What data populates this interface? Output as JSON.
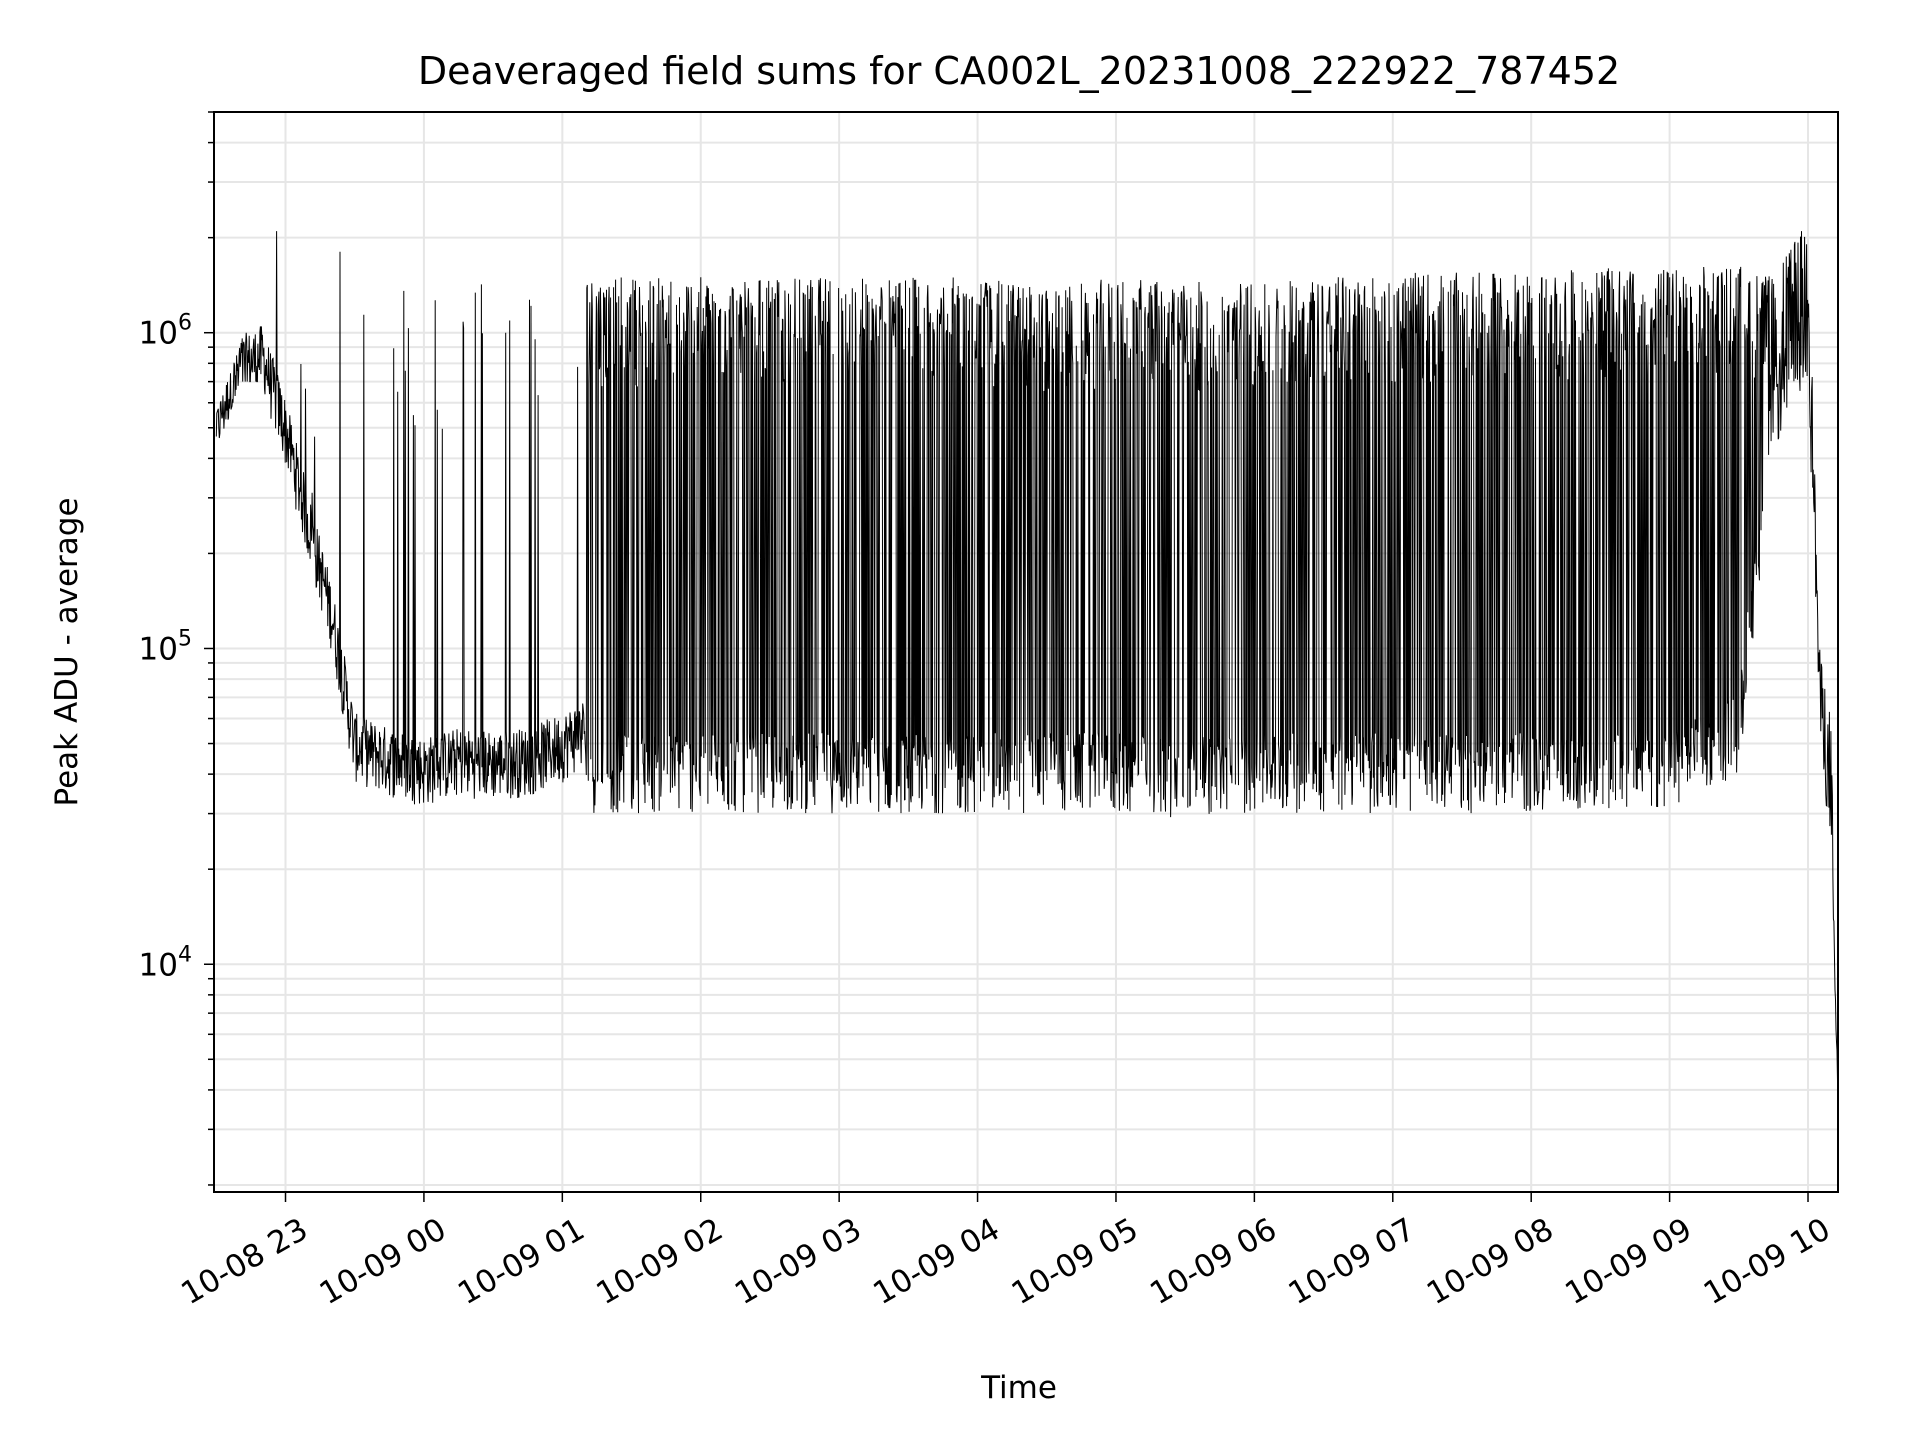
{
  "chart_data": {
    "type": "line",
    "title": "Deaveraged field sums for CA002L_20231008_222922_787452",
    "xlabel": "Time",
    "ylabel": "Peak ADU - average",
    "yscale": "log",
    "ylim": [
      1900,
      5000000
    ],
    "xlim": [
      "2023-10-08 22:29",
      "2023-10-09 10:13"
    ],
    "grid": true,
    "line_color": "#000000",
    "x_ticks": [
      "10-08 23",
      "10-09 00",
      "10-09 01",
      "10-09 02",
      "10-09 03",
      "10-09 04",
      "10-09 05",
      "10-09 06",
      "10-09 07",
      "10-09 08",
      "10-09 09",
      "10-09 10"
    ],
    "y_ticks": [
      {
        "value": 10000,
        "base": "10",
        "exp": "4"
      },
      {
        "value": 100000,
        "base": "10",
        "exp": "5"
      },
      {
        "value": 1000000,
        "base": "10",
        "exp": "6"
      }
    ],
    "series": [
      {
        "x": [
          "2023-10-08 22:30",
          "2023-10-08 22:40",
          "2023-10-08 22:50",
          "2023-10-08 23:00",
          "2023-10-08 23:10",
          "2023-10-08 23:20",
          "2023-10-08 23:30",
          "2023-10-08 23:45",
          "2023-10-09 00:00",
          "2023-10-09 00:15",
          "2023-10-09 00:30",
          "2023-10-09 00:45",
          "2023-10-09 01:00",
          "2023-10-09 01:15",
          "2023-10-09 01:30",
          "2023-10-09 01:45",
          "2023-10-09 02:00",
          "2023-10-09 02:30",
          "2023-10-09 03:00",
          "2023-10-09 03:30",
          "2023-10-09 04:00",
          "2023-10-09 04:30",
          "2023-10-09 05:00",
          "2023-10-09 05:30",
          "2023-10-09 06:00",
          "2023-10-09 06:30",
          "2023-10-09 07:00",
          "2023-10-09 07:30",
          "2023-10-09 08:00",
          "2023-10-09 08:30",
          "2023-10-09 09:00",
          "2023-10-09 09:30",
          "2023-10-09 09:45",
          "2023-10-09 10:00",
          "2023-10-09 10:05",
          "2023-10-09 10:10",
          "2023-10-09 10:13"
        ],
        "y": [
          520000,
          780000,
          850000,
          500000,
          250000,
          130000,
          50000,
          45000,
          42000,
          45000,
          44000,
          45000,
          50000,
          60000,
          65000,
          60000,
          55000,
          50000,
          55000,
          60000,
          65000,
          70000,
          80000,
          90000,
          100000,
          110000,
          120000,
          140000,
          160000,
          200000,
          300000,
          600000,
          800000,
          1000000,
          90000,
          40000,
          3000
        ],
        "spike_max": [
          550000,
          900000,
          2300000,
          3100000,
          600000,
          3600000,
          2600000,
          1400000,
          1500000,
          1500000,
          1500000,
          1500000,
          1500000,
          1500000,
          1500000,
          1500000,
          1500000,
          1500000,
          1500000,
          1500000,
          1500000,
          1400000,
          1500000,
          1450000,
          1450000,
          1500000,
          1550000,
          1550000,
          1550000,
          1600000,
          1600000,
          1650000,
          1500000,
          2300000,
          100000,
          60000,
          5000
        ],
        "spike_min": [
          400000,
          700000,
          700000,
          300000,
          150000,
          60000,
          33000,
          33000,
          28000,
          30000,
          30000,
          30000,
          30000,
          30000,
          30000,
          30000,
          30000,
          30000,
          30000,
          30000,
          30000,
          30000,
          30000,
          29000,
          30000,
          30000,
          30000,
          30000,
          30000,
          30000,
          30000,
          40000,
          420000,
          700000,
          60000,
          20000,
          2000
        ]
      }
    ]
  }
}
